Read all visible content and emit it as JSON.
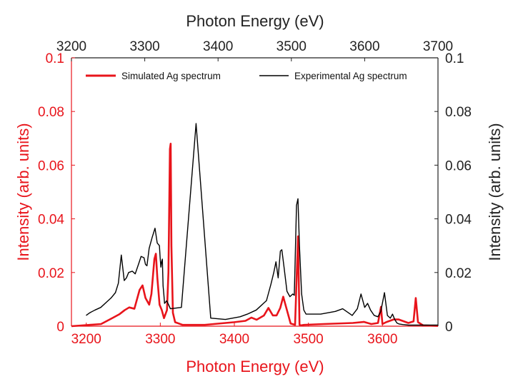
{
  "chart_data": {
    "type": "line",
    "top_xlabel": "Photon Energy (eV)",
    "bottom_xlabel": "Photon Energy (eV)",
    "left_ylabel": "Intensity (arb. units)",
    "right_ylabel": "Intensity (arb. units)",
    "top_xlim": [
      3200,
      3700
    ],
    "bottom_xlim": [
      3180,
      3675
    ],
    "ylim": [
      0,
      0.1
    ],
    "top_xticks": [
      "3200",
      "3300",
      "3400",
      "3500",
      "3600",
      "3700"
    ],
    "bottom_xticks": [
      "3200",
      "3300",
      "3400",
      "3500",
      "3600"
    ],
    "left_yticks": [
      "0",
      "0.02",
      "0.04",
      "0.06",
      "0.08",
      "0.1"
    ],
    "right_yticks": [
      "0",
      "0.02",
      "0.04",
      "0.06",
      "0.08",
      "0.1"
    ],
    "legend_position": "top",
    "colors": {
      "simulated": "#e8141b",
      "experimental": "#000000",
      "red_axis": "#e8141b",
      "black_axis": "#222222"
    },
    "series": [
      {
        "name": "Simulated Ag spectrum",
        "axis": "bottom",
        "color": "#e8141b",
        "x": [
          3180,
          3200,
          3220,
          3235,
          3245,
          3252,
          3258,
          3265,
          3272,
          3276,
          3280,
          3285,
          3288,
          3292,
          3294,
          3296,
          3299,
          3302,
          3305,
          3309,
          3311,
          3313,
          3314,
          3315,
          3317,
          3320,
          3330,
          3360,
          3380,
          3400,
          3415,
          3423,
          3430,
          3440,
          3446,
          3452,
          3457,
          3462,
          3466,
          3470,
          3476,
          3482,
          3486,
          3488,
          3490,
          3494,
          3520,
          3560,
          3575,
          3585,
          3594,
          3598,
          3600,
          3605,
          3615,
          3622,
          3635,
          3642,
          3645,
          3648,
          3655,
          3675
        ],
        "y": [
          0.0,
          0.0004,
          0.0008,
          0.003,
          0.0045,
          0.006,
          0.007,
          0.0065,
          0.0135,
          0.0152,
          0.0105,
          0.008,
          0.012,
          0.025,
          0.027,
          0.018,
          0.008,
          0.006,
          0.003,
          0.006,
          0.02,
          0.066,
          0.068,
          0.03,
          0.005,
          0.0015,
          0.0005,
          0.0005,
          0.001,
          0.0015,
          0.002,
          0.0032,
          0.0024,
          0.004,
          0.0068,
          0.004,
          0.004,
          0.0068,
          0.011,
          0.007,
          0.001,
          0.0005,
          0.0335,
          0.0005,
          0.0003,
          0.0005,
          0.0008,
          0.0012,
          0.0016,
          0.0008,
          0.0012,
          0.0072,
          0.0008,
          0.0015,
          0.0025,
          0.0025,
          0.0012,
          0.0018,
          0.0105,
          0.0015,
          0.0003,
          0.0001
        ]
      },
      {
        "name": "Experimental Ag spectrum",
        "axis": "top",
        "color": "#000000",
        "x": [
          3220,
          3225,
          3232,
          3240,
          3248,
          3254,
          3260,
          3264,
          3268,
          3272,
          3275,
          3278,
          3283,
          3287,
          3292,
          3295,
          3299,
          3301,
          3303,
          3306,
          3310,
          3314,
          3317,
          3320,
          3321,
          3322,
          3323,
          3324,
          3325,
          3326,
          3327,
          3330,
          3335,
          3350,
          3370,
          3390,
          3410,
          3430,
          3440,
          3448,
          3452,
          3458,
          3462,
          3466,
          3469,
          3472,
          3476,
          3479,
          3482,
          3485,
          3487,
          3490,
          3494,
          3498,
          3502,
          3504,
          3507,
          3509,
          3511,
          3514,
          3517,
          3520,
          3540,
          3560,
          3570,
          3583,
          3590,
          3595,
          3600,
          3604,
          3608,
          3613,
          3618,
          3622,
          3627,
          3631,
          3635,
          3638,
          3641,
          3644,
          3647,
          3652,
          3660,
          3670,
          3680,
          3695,
          3700
        ],
        "y": [
          0.004,
          0.005,
          0.006,
          0.007,
          0.009,
          0.0105,
          0.0125,
          0.016,
          0.0265,
          0.017,
          0.018,
          0.02,
          0.0205,
          0.0195,
          0.0235,
          0.026,
          0.0255,
          0.023,
          0.0225,
          0.029,
          0.033,
          0.0365,
          0.031,
          0.03,
          0.0255,
          0.022,
          0.024,
          0.025,
          0.015,
          0.012,
          0.0085,
          0.0095,
          0.0065,
          0.007,
          0.0755,
          0.003,
          0.0025,
          0.0035,
          0.0045,
          0.0055,
          0.006,
          0.0075,
          0.0085,
          0.0095,
          0.0125,
          0.0155,
          0.02,
          0.024,
          0.018,
          0.028,
          0.0285,
          0.022,
          0.013,
          0.011,
          0.012,
          0.0115,
          0.045,
          0.0475,
          0.03,
          0.012,
          0.006,
          0.0045,
          0.0045,
          0.0055,
          0.0065,
          0.004,
          0.0065,
          0.012,
          0.007,
          0.0085,
          0.006,
          0.004,
          0.0035,
          0.0055,
          0.0125,
          0.004,
          0.003,
          0.0045,
          0.0025,
          0.0012,
          0.0008,
          0.0006,
          0.0004,
          0.0004,
          0.0004,
          0.0004,
          0.0004
        ]
      }
    ]
  }
}
